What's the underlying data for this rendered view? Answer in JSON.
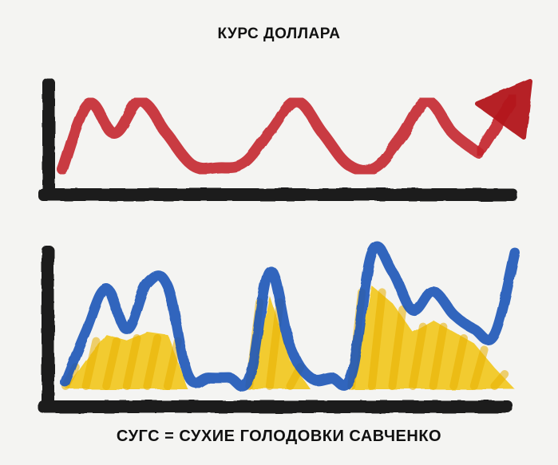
{
  "chart_data": [
    {
      "type": "line",
      "title": "КУРС ДОЛЛАРА",
      "x": [
        0,
        1,
        2,
        3,
        4,
        5,
        6,
        7,
        8,
        9,
        10,
        11,
        12,
        13,
        14,
        15,
        16
      ],
      "series": [
        {
          "values": [
            10,
            92,
            55,
            95,
            55,
            15,
            12,
            18,
            58,
            95,
            55,
            15,
            12,
            50,
            95,
            55,
            30
          ],
          "trend_arrow": "up"
        }
      ],
      "colors": {
        "line": "#c4202b",
        "axes": "#1a1a1a"
      },
      "ylim": [
        0,
        130
      ],
      "grid": false
    },
    {
      "type": "area",
      "title": "СУГС = СУХИЕ ГОЛОДОВКИ САВЧЕНКО",
      "x": [
        0,
        1,
        2,
        3,
        4,
        5,
        6,
        7,
        8,
        9,
        10,
        11,
        12,
        13,
        14,
        15,
        16,
        17,
        18,
        19,
        20,
        21,
        22
      ],
      "series": [
        {
          "color": "#1f56b8",
          "style": "line",
          "values": [
            5,
            40,
            70,
            42,
            74,
            72,
            10,
            8,
            8,
            8,
            82,
            30,
            8,
            8,
            10,
            95,
            82,
            55,
            68,
            52,
            42,
            38,
            95
          ]
        },
        {
          "color": "#f2c100",
          "style": "fill",
          "values": [
            0,
            20,
            38,
            34,
            40,
            38,
            0,
            0,
            0,
            0,
            65,
            20,
            0,
            0,
            0,
            72,
            60,
            40,
            48,
            40,
            32,
            15,
            0
          ]
        }
      ],
      "colors": {
        "axes": "#1a1a1a"
      },
      "ylim": [
        0,
        110
      ],
      "grid": false
    }
  ]
}
